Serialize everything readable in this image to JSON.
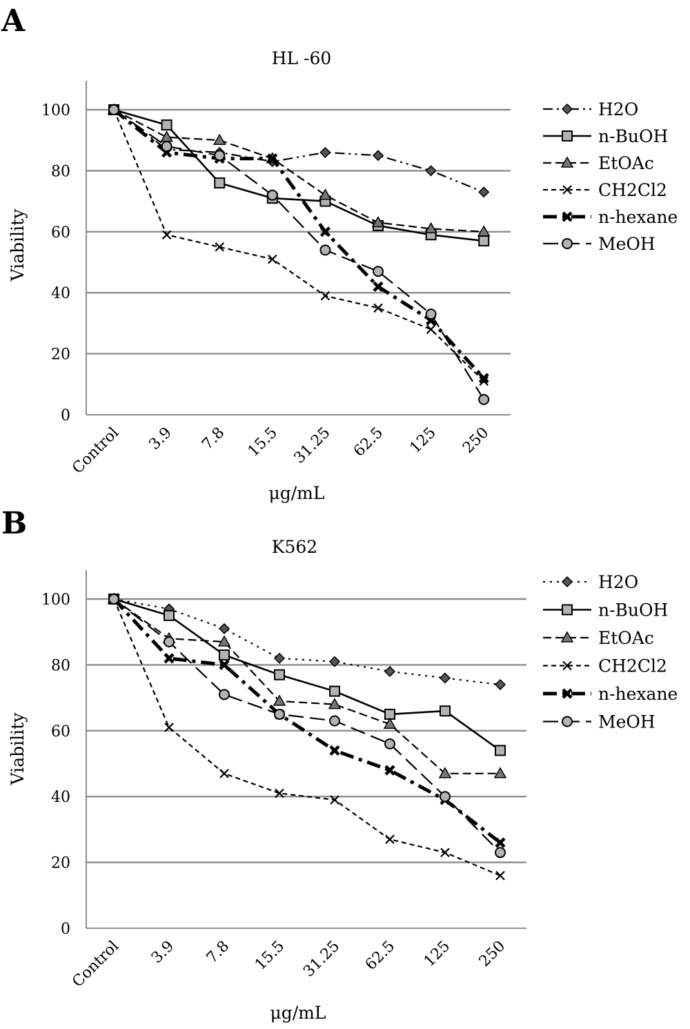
{
  "chart_data": [
    {
      "panel": "A",
      "type": "line",
      "title": "HL -60",
      "xlabel": "μg/mL",
      "ylabel": "Viability",
      "categories": [
        "Control",
        "3.9",
        "7.8",
        "15.5",
        "31.25",
        "62.5",
        "125",
        "250"
      ],
      "yticks": [
        "0",
        "20",
        "40",
        "60",
        "80",
        "100"
      ],
      "ylim": [
        0,
        110
      ],
      "grid": true,
      "legend_position": "right",
      "series": [
        {
          "name": "H2O",
          "marker": "diamond",
          "style": "dashdotdot",
          "values": [
            100,
            87,
            86,
            83,
            86,
            85,
            80,
            73
          ]
        },
        {
          "name": "n-BuOH",
          "marker": "square",
          "style": "solid",
          "values": [
            100,
            95,
            76,
            71,
            70,
            62,
            59,
            57
          ]
        },
        {
          "name": "EtOAc",
          "marker": "triangle",
          "style": "dashed",
          "values": [
            100,
            91,
            90,
            84,
            72,
            63,
            61,
            60
          ]
        },
        {
          "name": "CH2Cl2",
          "marker": "x",
          "style": "shortdash",
          "values": [
            100,
            59,
            55,
            51,
            39,
            35,
            28,
            11
          ]
        },
        {
          "name": "n-hexane",
          "marker": "boldx",
          "style": "dashdot-bold",
          "values": [
            100,
            86,
            84,
            84,
            60,
            42,
            31,
            12
          ]
        },
        {
          "name": "MeOH",
          "marker": "circle",
          "style": "longdash",
          "values": [
            100,
            88,
            85,
            72,
            54,
            47,
            33,
            5
          ]
        }
      ]
    },
    {
      "panel": "B",
      "type": "line",
      "title": "K562",
      "xlabel": "μg/mL",
      "ylabel": "Viability",
      "categories": [
        "Control",
        "3.9",
        "7.8",
        "15.5",
        "31.25",
        "62.5",
        "125",
        "250"
      ],
      "yticks": [
        "0",
        "20",
        "40",
        "60",
        "80",
        "100"
      ],
      "ylim": [
        0,
        110
      ],
      "grid": true,
      "legend_position": "right",
      "series": [
        {
          "name": "H2O",
          "marker": "diamond",
          "style": "dotted",
          "values": [
            100,
            97,
            91,
            82,
            81,
            78,
            76,
            74
          ]
        },
        {
          "name": "n-BuOH",
          "marker": "square",
          "style": "solid",
          "values": [
            100,
            95,
            83,
            77,
            72,
            65,
            66,
            54
          ]
        },
        {
          "name": "EtOAc",
          "marker": "triangle",
          "style": "dashed",
          "values": [
            100,
            88,
            87,
            69,
            68,
            62,
            47,
            47
          ]
        },
        {
          "name": "CH2Cl2",
          "marker": "x",
          "style": "shortdash",
          "values": [
            100,
            61,
            47,
            41,
            39,
            27,
            23,
            16
          ]
        },
        {
          "name": "n-hexane",
          "marker": "boldx",
          "style": "dashdot-bold",
          "values": [
            100,
            82,
            80,
            65,
            54,
            48,
            39,
            26
          ]
        },
        {
          "name": "MeOH",
          "marker": "circle",
          "style": "longdash",
          "values": [
            100,
            87,
            71,
            65,
            63,
            56,
            40,
            23
          ]
        }
      ]
    }
  ]
}
